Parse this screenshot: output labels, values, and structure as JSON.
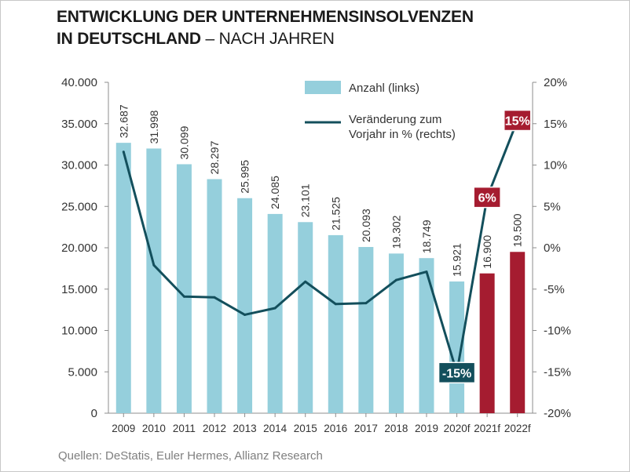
{
  "title": {
    "line1": "ENTWICKLUNG DER UNTERNEHMENSINSOLVENZEN",
    "line2_bold": "IN DEUTSCHLAND",
    "line2_rest": " – NACH JAHREN"
  },
  "source": "Quellen: DeStatis, Euler Hermes, Allianz Research",
  "colors": {
    "bar_actual": "#95cfdc",
    "bar_forecast": "#a51c30",
    "line": "#134f5c",
    "label_dark": "#134f5c",
    "label_red": "#a51c30"
  },
  "chart_data": {
    "type": "bar+line",
    "categories": [
      "2009",
      "2010",
      "2011",
      "2012",
      "2013",
      "2014",
      "2015",
      "2016",
      "2017",
      "2018",
      "2019",
      "2020f",
      "2021f",
      "2022f"
    ],
    "series": [
      {
        "name": "Anzahl (links)",
        "axis": "left",
        "type": "bar",
        "values": [
          32687,
          31998,
          30099,
          28297,
          25995,
          24085,
          23101,
          21525,
          20093,
          19302,
          18749,
          15921,
          16900,
          19500
        ],
        "labels": [
          "32.687",
          "31.998",
          "30.099",
          "28.297",
          "25.995",
          "24.085",
          "23.101",
          "21.525",
          "20.093",
          "19.302",
          "18.749",
          "15.921",
          "16.900",
          "19.500"
        ],
        "forecast_flags": [
          false,
          false,
          false,
          false,
          false,
          false,
          false,
          false,
          false,
          false,
          false,
          false,
          true,
          true
        ]
      },
      {
        "name": "Veränderung zum Vorjahr in % (rechts)",
        "legend_lines": [
          "Veränderung zum",
          "Vorjahr in % (rechts)"
        ],
        "axis": "right",
        "type": "line",
        "values": [
          11.6,
          -2.1,
          -5.9,
          -6.0,
          -8.1,
          -7.3,
          -4.1,
          -6.8,
          -6.7,
          -3.9,
          -2.9,
          -15.1,
          6.1,
          15.4
        ]
      }
    ],
    "annotations": [
      {
        "category": "2020f",
        "text": "-15%",
        "style": "dark"
      },
      {
        "category": "2021f",
        "text": "6%",
        "style": "red"
      },
      {
        "category": "2022f",
        "text": "15%",
        "style": "red"
      }
    ],
    "y_left": {
      "range": [
        0,
        40000
      ],
      "ticks": [
        0,
        5000,
        10000,
        15000,
        20000,
        25000,
        30000,
        35000,
        40000
      ],
      "tick_labels": [
        "0",
        "5.000",
        "10.000",
        "15.000",
        "20.000",
        "25.000",
        "30.000",
        "35.000",
        "40.000"
      ]
    },
    "y_right": {
      "range": [
        -20,
        20
      ],
      "ticks": [
        -20,
        -15,
        -10,
        -5,
        0,
        5,
        10,
        15,
        20
      ],
      "tick_labels": [
        "-20%",
        "-15%",
        "-10%",
        "-5%",
        "0%",
        "5%",
        "10%",
        "15%",
        "20%"
      ]
    },
    "legend_position": "top-right",
    "grid": false
  }
}
